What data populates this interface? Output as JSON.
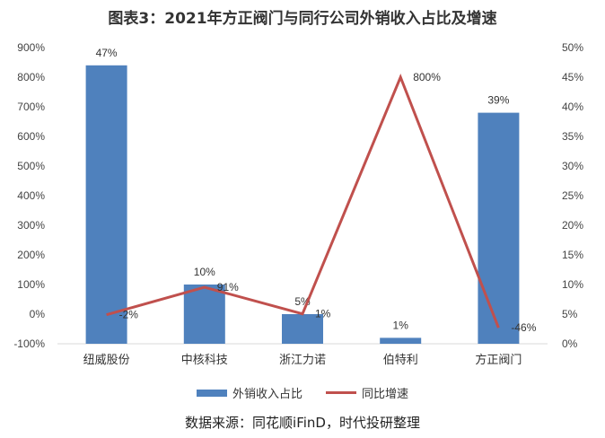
{
  "title": "图表3：2021年方正阀门与同行公司外销收入占比及增速",
  "source": "数据来源：同花顺iFinD，时代投研整理",
  "colors": {
    "bar": "#4f81bd",
    "line": "#c0504d",
    "axis": "#d9d9d9"
  },
  "chart_data": {
    "type": "bar",
    "categories": [
      "纽威股份",
      "中核科技",
      "浙江力诺",
      "伯特利",
      "方正阀门"
    ],
    "series": [
      {
        "name": "外销收入占比",
        "type": "bar",
        "axis": "right",
        "values": [
          47,
          10,
          5,
          1,
          39
        ],
        "labels": [
          "47%",
          "10%",
          "5%",
          "1%",
          "39%"
        ]
      },
      {
        "name": "同比增速",
        "type": "line",
        "axis": "left",
        "values": [
          -2,
          91,
          1,
          800,
          -46
        ],
        "labels": [
          "-2%",
          "91%",
          "1%",
          "800%",
          "-46%"
        ]
      }
    ],
    "left_axis": {
      "min": -100,
      "max": 900,
      "step": 100,
      "ticks": [
        "900%",
        "800%",
        "700%",
        "600%",
        "500%",
        "400%",
        "300%",
        "200%",
        "100%",
        "0%",
        "-100%"
      ]
    },
    "right_axis": {
      "min": 0,
      "max": 50,
      "step": 5,
      "ticks": [
        "50%",
        "45%",
        "40%",
        "35%",
        "30%",
        "25%",
        "20%",
        "15%",
        "10%",
        "5%",
        "0%"
      ]
    },
    "legend": "bottom",
    "grid": false
  }
}
